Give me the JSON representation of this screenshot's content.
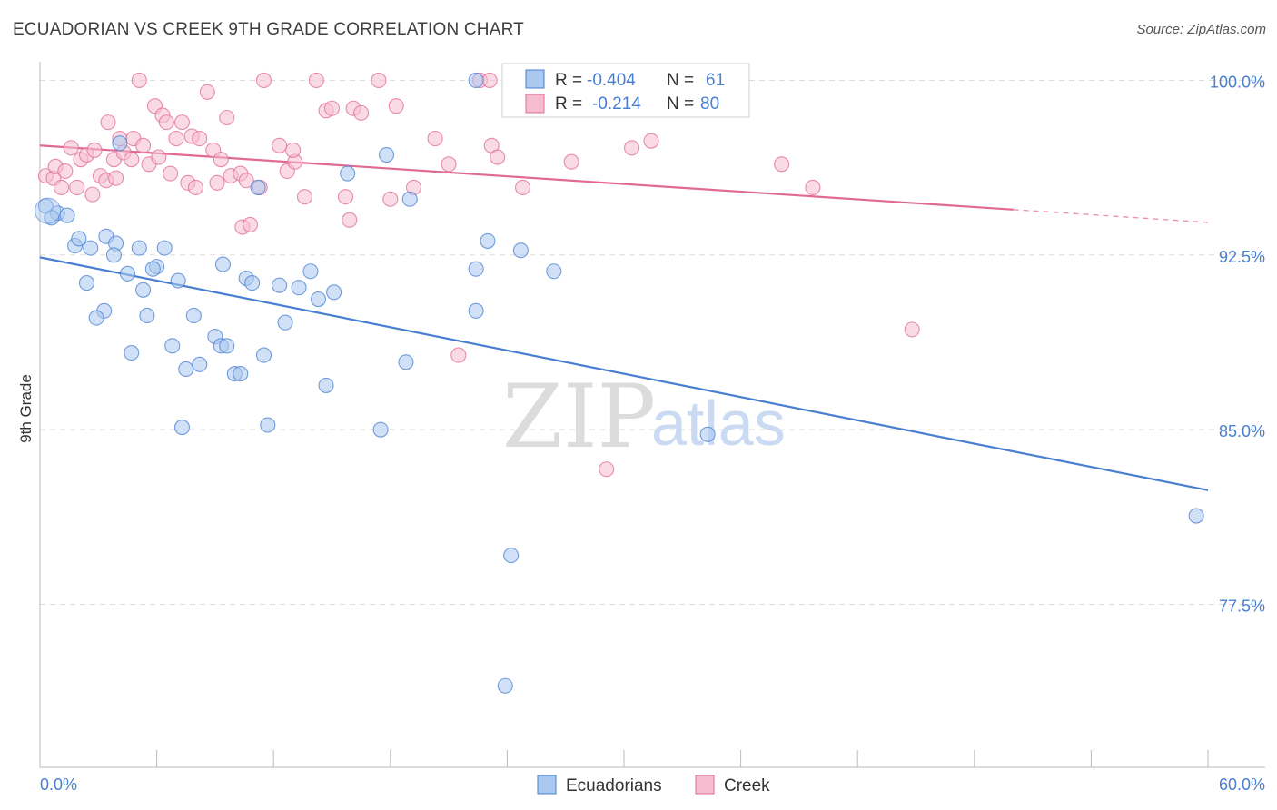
{
  "header": {
    "title": "ECUADORIAN VS CREEK 9TH GRADE CORRELATION CHART",
    "source": "Source: ZipAtlas.com"
  },
  "watermark": {
    "zip": "ZIP",
    "atlas": "atlas"
  },
  "colors": {
    "blue": "#4a7fd0",
    "blue_fill": "#a9c8f0",
    "pink": "#e06a92",
    "pink_fill": "#f6bdd0",
    "grid": "#dddddd"
  },
  "legend": {
    "rows": [
      {
        "r_label": "R = ",
        "r_value": "-0.404",
        "n_label": "N = ",
        "n_value": "61"
      },
      {
        "r_label": "R = ",
        "r_value": "-0.214",
        "n_label": "N = ",
        "n_value": "80"
      }
    ]
  },
  "chart_data": {
    "type": "scatter",
    "title": "ECUADORIAN VS CREEK 9TH GRADE CORRELATION CHART",
    "xlabel": "",
    "ylabel": "9th Grade",
    "xlim": [
      0,
      60
    ],
    "ylim": [
      70.5,
      101.5
    ],
    "x_tick_labels": [
      "0.0%",
      "60.0%"
    ],
    "y_ticks": [
      77.5,
      85.0,
      92.5,
      100.0
    ],
    "y_tick_labels": [
      "77.5%",
      "85.0%",
      "92.5%",
      "100.0%"
    ],
    "grid": true,
    "legend_position": "top-center",
    "series": [
      {
        "name": "Ecuadorians",
        "color": "#4a7fd0",
        "r": -0.404,
        "n": 61,
        "trend": {
          "x0": 0,
          "y0": 92.4,
          "x1": 60,
          "y1": 82.4,
          "dashed_from": null
        },
        "points": [
          [
            0.3,
            94.6
          ],
          [
            0.9,
            94.3
          ],
          [
            1.4,
            94.2
          ],
          [
            0.6,
            94.1
          ],
          [
            1.8,
            92.9
          ],
          [
            2.0,
            93.2
          ],
          [
            2.6,
            92.8
          ],
          [
            3.4,
            93.3
          ],
          [
            3.9,
            93.0
          ],
          [
            3.8,
            92.5
          ],
          [
            5.1,
            92.8
          ],
          [
            6.4,
            92.8
          ],
          [
            6.0,
            92.0
          ],
          [
            5.8,
            91.9
          ],
          [
            4.5,
            91.7
          ],
          [
            2.4,
            91.3
          ],
          [
            5.3,
            91.0
          ],
          [
            7.1,
            91.4
          ],
          [
            9.4,
            92.1
          ],
          [
            10.6,
            91.5
          ],
          [
            10.9,
            91.3
          ],
          [
            12.3,
            91.2
          ],
          [
            13.3,
            91.1
          ],
          [
            13.9,
            91.8
          ],
          [
            14.3,
            90.6
          ],
          [
            15.1,
            90.9
          ],
          [
            3.3,
            90.1
          ],
          [
            2.9,
            89.8
          ],
          [
            5.5,
            89.9
          ],
          [
            7.9,
            89.9
          ],
          [
            12.6,
            89.6
          ],
          [
            9.0,
            89.0
          ],
          [
            9.3,
            88.6
          ],
          [
            9.6,
            88.6
          ],
          [
            6.8,
            88.6
          ],
          [
            4.7,
            88.3
          ],
          [
            11.5,
            88.2
          ],
          [
            18.8,
            87.9
          ],
          [
            7.5,
            87.6
          ],
          [
            8.2,
            87.8
          ],
          [
            10.0,
            87.4
          ],
          [
            10.3,
            87.4
          ],
          [
            14.7,
            86.9
          ],
          [
            7.3,
            85.1
          ],
          [
            11.7,
            85.2
          ],
          [
            17.5,
            85.0
          ],
          [
            15.8,
            96.0
          ],
          [
            11.2,
            95.4
          ],
          [
            17.8,
            96.8
          ],
          [
            19.0,
            94.9
          ],
          [
            22.4,
            91.9
          ],
          [
            23.0,
            93.1
          ],
          [
            24.7,
            92.7
          ],
          [
            26.4,
            91.8
          ],
          [
            22.4,
            90.1
          ],
          [
            22.4,
            100.0
          ],
          [
            34.3,
            84.8
          ],
          [
            24.2,
            79.6
          ],
          [
            23.9,
            74.0
          ],
          [
            59.4,
            81.3
          ],
          [
            4.1,
            97.3
          ]
        ]
      },
      {
        "name": "Creek",
        "color": "#e06a92",
        "r": -0.214,
        "n": 80,
        "trend": {
          "x0": 0,
          "y0": 97.2,
          "x1": 60,
          "y1": 93.9,
          "dashed_from": 50
        },
        "points": [
          [
            0.3,
            95.9
          ],
          [
            0.7,
            95.8
          ],
          [
            0.8,
            96.3
          ],
          [
            1.1,
            95.4
          ],
          [
            1.3,
            96.1
          ],
          [
            1.6,
            97.1
          ],
          [
            1.9,
            95.4
          ],
          [
            2.1,
            96.6
          ],
          [
            2.4,
            96.8
          ],
          [
            2.7,
            95.1
          ],
          [
            2.8,
            97.0
          ],
          [
            3.1,
            95.9
          ],
          [
            3.4,
            95.7
          ],
          [
            3.5,
            98.2
          ],
          [
            3.8,
            96.6
          ],
          [
            3.9,
            95.8
          ],
          [
            4.1,
            97.5
          ],
          [
            4.3,
            96.9
          ],
          [
            4.7,
            96.6
          ],
          [
            4.8,
            97.5
          ],
          [
            5.1,
            100.0
          ],
          [
            5.3,
            97.2
          ],
          [
            5.6,
            96.4
          ],
          [
            5.9,
            98.9
          ],
          [
            6.1,
            96.7
          ],
          [
            6.3,
            98.5
          ],
          [
            6.5,
            98.2
          ],
          [
            6.7,
            96.0
          ],
          [
            7.0,
            97.5
          ],
          [
            7.3,
            98.2
          ],
          [
            7.6,
            95.6
          ],
          [
            7.8,
            97.6
          ],
          [
            8.0,
            95.4
          ],
          [
            8.2,
            97.5
          ],
          [
            8.6,
            99.5
          ],
          [
            8.9,
            97.0
          ],
          [
            9.1,
            95.6
          ],
          [
            9.3,
            96.6
          ],
          [
            9.6,
            98.4
          ],
          [
            9.8,
            95.9
          ],
          [
            10.3,
            96.0
          ],
          [
            10.6,
            95.7
          ],
          [
            10.4,
            93.7
          ],
          [
            10.8,
            93.8
          ],
          [
            11.3,
            95.4
          ],
          [
            11.5,
            100.0
          ],
          [
            12.3,
            97.2
          ],
          [
            12.7,
            96.1
          ],
          [
            13.1,
            96.5
          ],
          [
            13.6,
            95.0
          ],
          [
            14.2,
            100.0
          ],
          [
            14.7,
            98.7
          ],
          [
            15.0,
            98.8
          ],
          [
            15.7,
            95.0
          ],
          [
            15.9,
            94.0
          ],
          [
            16.1,
            98.8
          ],
          [
            16.5,
            98.6
          ],
          [
            17.4,
            100.0
          ],
          [
            18.0,
            94.9
          ],
          [
            18.3,
            98.9
          ],
          [
            19.2,
            95.4
          ],
          [
            20.3,
            97.5
          ],
          [
            21.0,
            96.4
          ],
          [
            21.5,
            88.2
          ],
          [
            22.6,
            100.0
          ],
          [
            23.1,
            100.0
          ],
          [
            23.2,
            97.2
          ],
          [
            23.5,
            96.7
          ],
          [
            24.5,
            99.1
          ],
          [
            24.8,
            95.4
          ],
          [
            27.3,
            96.5
          ],
          [
            30.4,
            97.1
          ],
          [
            31.4,
            97.4
          ],
          [
            38.1,
            96.4
          ],
          [
            39.7,
            95.4
          ],
          [
            44.8,
            89.3
          ],
          [
            29.1,
            83.3
          ],
          [
            25.1,
            99.2
          ],
          [
            24.3,
            99.0
          ],
          [
            13.0,
            97.0
          ]
        ]
      }
    ]
  },
  "bottom_legend": {
    "items": [
      {
        "label": "Ecuadorians"
      },
      {
        "label": "Creek"
      }
    ]
  }
}
